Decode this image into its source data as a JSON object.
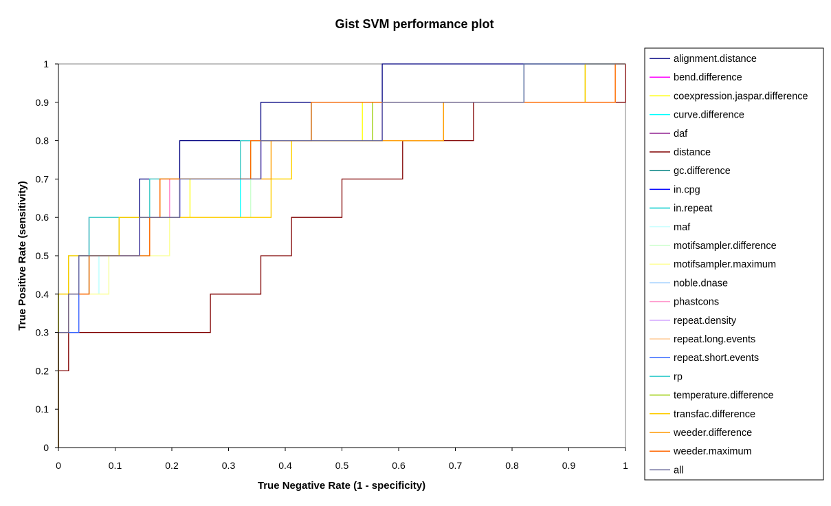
{
  "chart_data": {
    "type": "line",
    "title": "Gist SVM performance plot",
    "xlabel": "True Negative Rate (1 - specificity)",
    "ylabel": "True Positive Rate (sensitivity)",
    "xlim": [
      0,
      1
    ],
    "ylim": [
      0,
      1
    ],
    "x_ticks": [
      "0",
      "0.1",
      "0.2",
      "0.3",
      "0.4",
      "0.5",
      "0.6",
      "0.7",
      "0.8",
      "0.9",
      "1"
    ],
    "y_ticks": [
      "0",
      "0.1",
      "0.2",
      "0.3",
      "0.4",
      "0.5",
      "0.6",
      "0.7",
      "0.8",
      "0.9",
      "1"
    ],
    "grid": false,
    "legend_position": "right",
    "series": [
      {
        "name": "alignment.distance",
        "color": "#000080",
        "x": [
          0,
          0,
          0.018,
          0.018,
          0.036,
          0.036,
          0.054,
          0.054,
          0.143,
          0.143,
          0.214,
          0.214,
          0.357,
          0.357,
          0.571,
          0.571,
          0.821,
          0.821,
          1.0
        ],
        "y": [
          0,
          0.3,
          0.3,
          0.4,
          0.4,
          0.5,
          0.5,
          0.6,
          0.6,
          0.7,
          0.7,
          0.8,
          0.8,
          0.9,
          0.9,
          1.0,
          1.0,
          1.0,
          1.0
        ]
      },
      {
        "name": "bend.difference",
        "color": "#FF00FF",
        "x": [
          0,
          0,
          0.036,
          0.036,
          0.054,
          0.054,
          0.143,
          0.143,
          0.196,
          0.196,
          0.357,
          0.357,
          0.571,
          0.571,
          0.821,
          0.821,
          1.0
        ],
        "y": [
          0,
          0.3,
          0.3,
          0.5,
          0.5,
          0.6,
          0.6,
          0.6,
          0.6,
          0.7,
          0.7,
          0.8,
          0.8,
          0.9,
          0.9,
          1.0,
          1.0
        ]
      },
      {
        "name": "coexpression.jaspar.difference",
        "color": "#FFFF00",
        "x": [
          0,
          0,
          0.018,
          0.018,
          0.107,
          0.107,
          0.232,
          0.232,
          0.411,
          0.411,
          0.536,
          0.536,
          0.929,
          0.929,
          1.0
        ],
        "y": [
          0,
          0.4,
          0.4,
          0.5,
          0.5,
          0.6,
          0.6,
          0.7,
          0.7,
          0.8,
          0.8,
          0.9,
          0.9,
          1.0,
          1.0
        ]
      },
      {
        "name": "curve.difference",
        "color": "#00FFFF",
        "x": [
          0,
          0,
          0.018,
          0.018,
          0.071,
          0.071,
          0.161,
          0.161,
          0.321,
          0.321,
          0.446,
          0.446,
          0.821,
          0.821,
          1.0
        ],
        "y": [
          0,
          0.3,
          0.3,
          0.4,
          0.4,
          0.5,
          0.5,
          0.6,
          0.6,
          0.8,
          0.8,
          0.9,
          0.9,
          1.0,
          1.0
        ]
      },
      {
        "name": "daf",
        "color": "#800080",
        "x": [
          0,
          0,
          0.036,
          0.036,
          0.143,
          0.143,
          0.214,
          0.214,
          0.357,
          0.357,
          0.571,
          0.571,
          0.821,
          0.821,
          1.0
        ],
        "y": [
          0,
          0.3,
          0.3,
          0.5,
          0.5,
          0.6,
          0.6,
          0.7,
          0.7,
          0.8,
          0.8,
          0.9,
          0.9,
          1.0,
          1.0
        ]
      },
      {
        "name": "distance",
        "color": "#800000",
        "x": [
          0,
          0,
          0.018,
          0.018,
          0.268,
          0.268,
          0.357,
          0.357,
          0.411,
          0.411,
          0.5,
          0.5,
          0.607,
          0.607,
          0.732,
          0.732,
          1.0,
          1.0
        ],
        "y": [
          0,
          0.2,
          0.2,
          0.3,
          0.3,
          0.4,
          0.4,
          0.5,
          0.5,
          0.6,
          0.6,
          0.7,
          0.7,
          0.8,
          0.8,
          0.9,
          0.9,
          1.0
        ]
      },
      {
        "name": "gc.difference",
        "color": "#008080",
        "x": [
          0,
          0,
          0.018,
          0.018,
          0.054,
          0.054,
          0.161,
          0.161,
          0.321,
          0.321,
          0.446,
          0.446,
          0.821,
          0.821,
          1.0
        ],
        "y": [
          0,
          0.3,
          0.3,
          0.4,
          0.4,
          0.6,
          0.6,
          0.7,
          0.7,
          0.8,
          0.8,
          0.9,
          0.9,
          1.0,
          1.0
        ]
      },
      {
        "name": "in.cpg",
        "color": "#0000FF",
        "x": [
          0,
          0,
          0.036,
          0.036,
          0.143,
          0.143,
          0.214,
          0.214,
          0.357,
          0.357,
          0.571,
          0.571,
          0.821,
          0.821,
          1.0
        ],
        "y": [
          0,
          0.3,
          0.3,
          0.5,
          0.5,
          0.6,
          0.6,
          0.7,
          0.7,
          0.8,
          0.8,
          0.9,
          0.9,
          1.0,
          1.0
        ]
      },
      {
        "name": "in.repeat",
        "color": "#00CCCC",
        "x": [
          0,
          0,
          0.018,
          0.018,
          0.054,
          0.054,
          0.161,
          0.161,
          0.321,
          0.321,
          0.446,
          0.446,
          0.821,
          0.821,
          1.0
        ],
        "y": [
          0,
          0.3,
          0.3,
          0.4,
          0.4,
          0.6,
          0.6,
          0.7,
          0.7,
          0.8,
          0.8,
          0.9,
          0.9,
          1.0,
          1.0
        ]
      },
      {
        "name": "maf",
        "color": "#CCFFFF",
        "x": [
          0,
          0,
          0.018,
          0.018,
          0.071,
          0.071,
          0.161,
          0.161,
          0.339,
          0.339,
          0.446,
          0.446,
          0.821,
          0.821,
          1.0
        ],
        "y": [
          0,
          0.3,
          0.3,
          0.4,
          0.4,
          0.5,
          0.5,
          0.6,
          0.6,
          0.8,
          0.8,
          0.9,
          0.9,
          1.0,
          1.0
        ]
      },
      {
        "name": "motifsampler.difference",
        "color": "#CCFFCC",
        "x": [
          0,
          0,
          0.018,
          0.018,
          0.089,
          0.089,
          0.196,
          0.196,
          0.339,
          0.339,
          0.446,
          0.446,
          0.821,
          0.821,
          1.0
        ],
        "y": [
          0,
          0.3,
          0.3,
          0.4,
          0.4,
          0.5,
          0.5,
          0.6,
          0.6,
          0.8,
          0.8,
          0.9,
          0.9,
          1.0,
          1.0
        ]
      },
      {
        "name": "motifsampler.maximum",
        "color": "#FFFF99",
        "x": [
          0,
          0,
          0.018,
          0.018,
          0.089,
          0.089,
          0.196,
          0.196,
          0.375,
          0.375,
          0.446,
          0.446,
          0.821,
          0.821,
          1.0
        ],
        "y": [
          0,
          0.3,
          0.3,
          0.4,
          0.4,
          0.5,
          0.5,
          0.6,
          0.6,
          0.8,
          0.8,
          0.9,
          0.9,
          1.0,
          1.0
        ]
      },
      {
        "name": "noble.dnase",
        "color": "#99CCFF",
        "x": [
          0,
          0,
          0.018,
          0.018,
          0.054,
          0.054,
          0.161,
          0.161,
          0.321,
          0.321,
          0.446,
          0.446,
          0.821,
          0.821,
          1.0
        ],
        "y": [
          0,
          0.3,
          0.3,
          0.4,
          0.4,
          0.6,
          0.6,
          0.7,
          0.7,
          0.8,
          0.8,
          0.9,
          0.9,
          1.0,
          1.0
        ]
      },
      {
        "name": "phastcons",
        "color": "#FF99CC",
        "x": [
          0,
          0,
          0.036,
          0.036,
          0.143,
          0.143,
          0.196,
          0.196,
          0.357,
          0.357,
          0.571,
          0.571,
          0.821,
          0.821,
          1.0
        ],
        "y": [
          0,
          0.3,
          0.3,
          0.5,
          0.5,
          0.6,
          0.6,
          0.7,
          0.7,
          0.8,
          0.8,
          0.9,
          0.9,
          1.0,
          1.0
        ]
      },
      {
        "name": "repeat.density",
        "color": "#CC99FF",
        "x": [
          0,
          0,
          0.036,
          0.036,
          0.143,
          0.143,
          0.214,
          0.214,
          0.357,
          0.357,
          0.571,
          0.571,
          0.821,
          0.821,
          1.0
        ],
        "y": [
          0,
          0.3,
          0.3,
          0.5,
          0.5,
          0.6,
          0.6,
          0.7,
          0.7,
          0.8,
          0.8,
          0.9,
          0.9,
          1.0,
          1.0
        ]
      },
      {
        "name": "repeat.long.events",
        "color": "#FFCC99",
        "x": [
          0,
          0,
          0.018,
          0.018,
          0.054,
          0.054,
          0.161,
          0.161,
          0.321,
          0.321,
          0.446,
          0.446,
          0.821,
          0.821,
          1.0
        ],
        "y": [
          0,
          0.3,
          0.3,
          0.4,
          0.4,
          0.6,
          0.6,
          0.7,
          0.7,
          0.8,
          0.8,
          0.9,
          0.9,
          1.0,
          1.0
        ]
      },
      {
        "name": "repeat.short.events",
        "color": "#3366FF",
        "x": [
          0,
          0,
          0.036,
          0.036,
          0.143,
          0.143,
          0.214,
          0.214,
          0.357,
          0.357,
          0.571,
          0.571,
          0.821,
          0.821,
          1.0
        ],
        "y": [
          0,
          0.3,
          0.3,
          0.5,
          0.5,
          0.6,
          0.6,
          0.7,
          0.7,
          0.8,
          0.8,
          0.9,
          0.9,
          1.0,
          1.0
        ]
      },
      {
        "name": "rp",
        "color": "#33CCCC",
        "x": [
          0,
          0,
          0.018,
          0.018,
          0.054,
          0.054,
          0.161,
          0.161,
          0.321,
          0.321,
          0.446,
          0.446,
          0.821,
          0.821,
          1.0
        ],
        "y": [
          0,
          0.3,
          0.3,
          0.4,
          0.4,
          0.6,
          0.6,
          0.7,
          0.7,
          0.8,
          0.8,
          0.9,
          0.9,
          1.0,
          1.0
        ]
      },
      {
        "name": "temperature.difference",
        "color": "#99CC00",
        "x": [
          0,
          0,
          0.018,
          0.018,
          0.107,
          0.107,
          0.179,
          0.179,
          0.339,
          0.339,
          0.554,
          0.554,
          0.929,
          0.929,
          1.0
        ],
        "y": [
          0,
          0.4,
          0.4,
          0.5,
          0.5,
          0.6,
          0.6,
          0.7,
          0.7,
          0.8,
          0.8,
          0.9,
          0.9,
          1.0,
          1.0
        ]
      },
      {
        "name": "transfac.difference",
        "color": "#FFCC00",
        "x": [
          0,
          0,
          0.018,
          0.018,
          0.107,
          0.107,
          0.232,
          0.232,
          0.375,
          0.375,
          0.411,
          0.411,
          0.679,
          0.679,
          0.929,
          0.929,
          1.0
        ],
        "y": [
          0,
          0.4,
          0.4,
          0.5,
          0.5,
          0.6,
          0.6,
          0.6,
          0.6,
          0.7,
          0.7,
          0.8,
          0.8,
          0.9,
          0.9,
          1.0,
          1.0
        ]
      },
      {
        "name": "weeder.difference",
        "color": "#FF9900",
        "x": [
          0,
          0,
          0.018,
          0.018,
          0.054,
          0.054,
          0.161,
          0.161,
          0.179,
          0.179,
          0.375,
          0.375,
          0.589,
          0.589,
          0.679,
          0.679,
          0.982,
          0.982,
          1.0
        ],
        "y": [
          0,
          0.3,
          0.3,
          0.4,
          0.4,
          0.5,
          0.5,
          0.6,
          0.6,
          0.7,
          0.7,
          0.8,
          0.8,
          0.8,
          0.8,
          0.9,
          0.9,
          1.0,
          1.0
        ]
      },
      {
        "name": "weeder.maximum",
        "color": "#FF6600",
        "x": [
          0,
          0,
          0.018,
          0.018,
          0.054,
          0.054,
          0.161,
          0.161,
          0.179,
          0.179,
          0.339,
          0.339,
          0.446,
          0.446,
          0.982,
          0.982,
          1.0
        ],
        "y": [
          0,
          0.3,
          0.3,
          0.4,
          0.4,
          0.5,
          0.5,
          0.6,
          0.6,
          0.7,
          0.7,
          0.8,
          0.8,
          0.9,
          0.9,
          1.0,
          1.0
        ]
      },
      {
        "name": "all",
        "color": "#666699",
        "x": [
          0,
          0,
          0.018,
          0.018,
          0.036,
          0.036,
          0.143,
          0.143,
          0.214,
          0.214,
          0.357,
          0.357,
          0.571,
          0.571,
          0.821,
          0.821,
          1.0
        ],
        "y": [
          0,
          0.3,
          0.3,
          0.4,
          0.4,
          0.5,
          0.5,
          0.6,
          0.6,
          0.7,
          0.7,
          0.8,
          0.8,
          0.9,
          0.9,
          1.0,
          1.0
        ]
      }
    ]
  }
}
